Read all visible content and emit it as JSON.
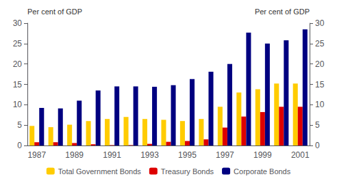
{
  "chart_data": {
    "type": "bar",
    "categories": [
      "1987",
      null,
      "1989",
      null,
      "1991",
      null,
      "1993",
      null,
      "1995",
      null,
      "1997",
      null,
      "1999",
      null,
      "2001"
    ],
    "series": [
      {
        "name": "Total Government Bonds",
        "color": "#ffcc00",
        "values": [
          4.8,
          4.5,
          5.1,
          6.0,
          6.5,
          7.0,
          6.5,
          6.3,
          6.0,
          6.5,
          9.5,
          13.0,
          13.8,
          15.2,
          15.2
        ]
      },
      {
        "name": "Treasury Bonds",
        "color": "#dd0000",
        "values": [
          0.8,
          0.8,
          0.6,
          0.3,
          0.1,
          0.1,
          0.4,
          0.9,
          1.1,
          1.5,
          4.4,
          7.1,
          8.2,
          9.5,
          9.5
        ]
      },
      {
        "name": "Corporate Bonds",
        "color": "#000080",
        "values": [
          9.2,
          9.1,
          11.0,
          13.5,
          14.5,
          14.5,
          14.4,
          14.8,
          16.3,
          18.1,
          20.0,
          27.7,
          25.0,
          25.8,
          28.5
        ]
      }
    ],
    "y_label": "Per cent of GDP",
    "y2_label": "Per cent of GDP",
    "ylim": [
      0,
      30
    ],
    "yticks": [
      0,
      5,
      10,
      15,
      20,
      25,
      30
    ],
    "y2lim": [
      0,
      30
    ],
    "y2ticks": [
      0,
      5,
      10,
      15,
      20,
      25,
      30
    ],
    "grid": false,
    "legend": "bottom"
  }
}
